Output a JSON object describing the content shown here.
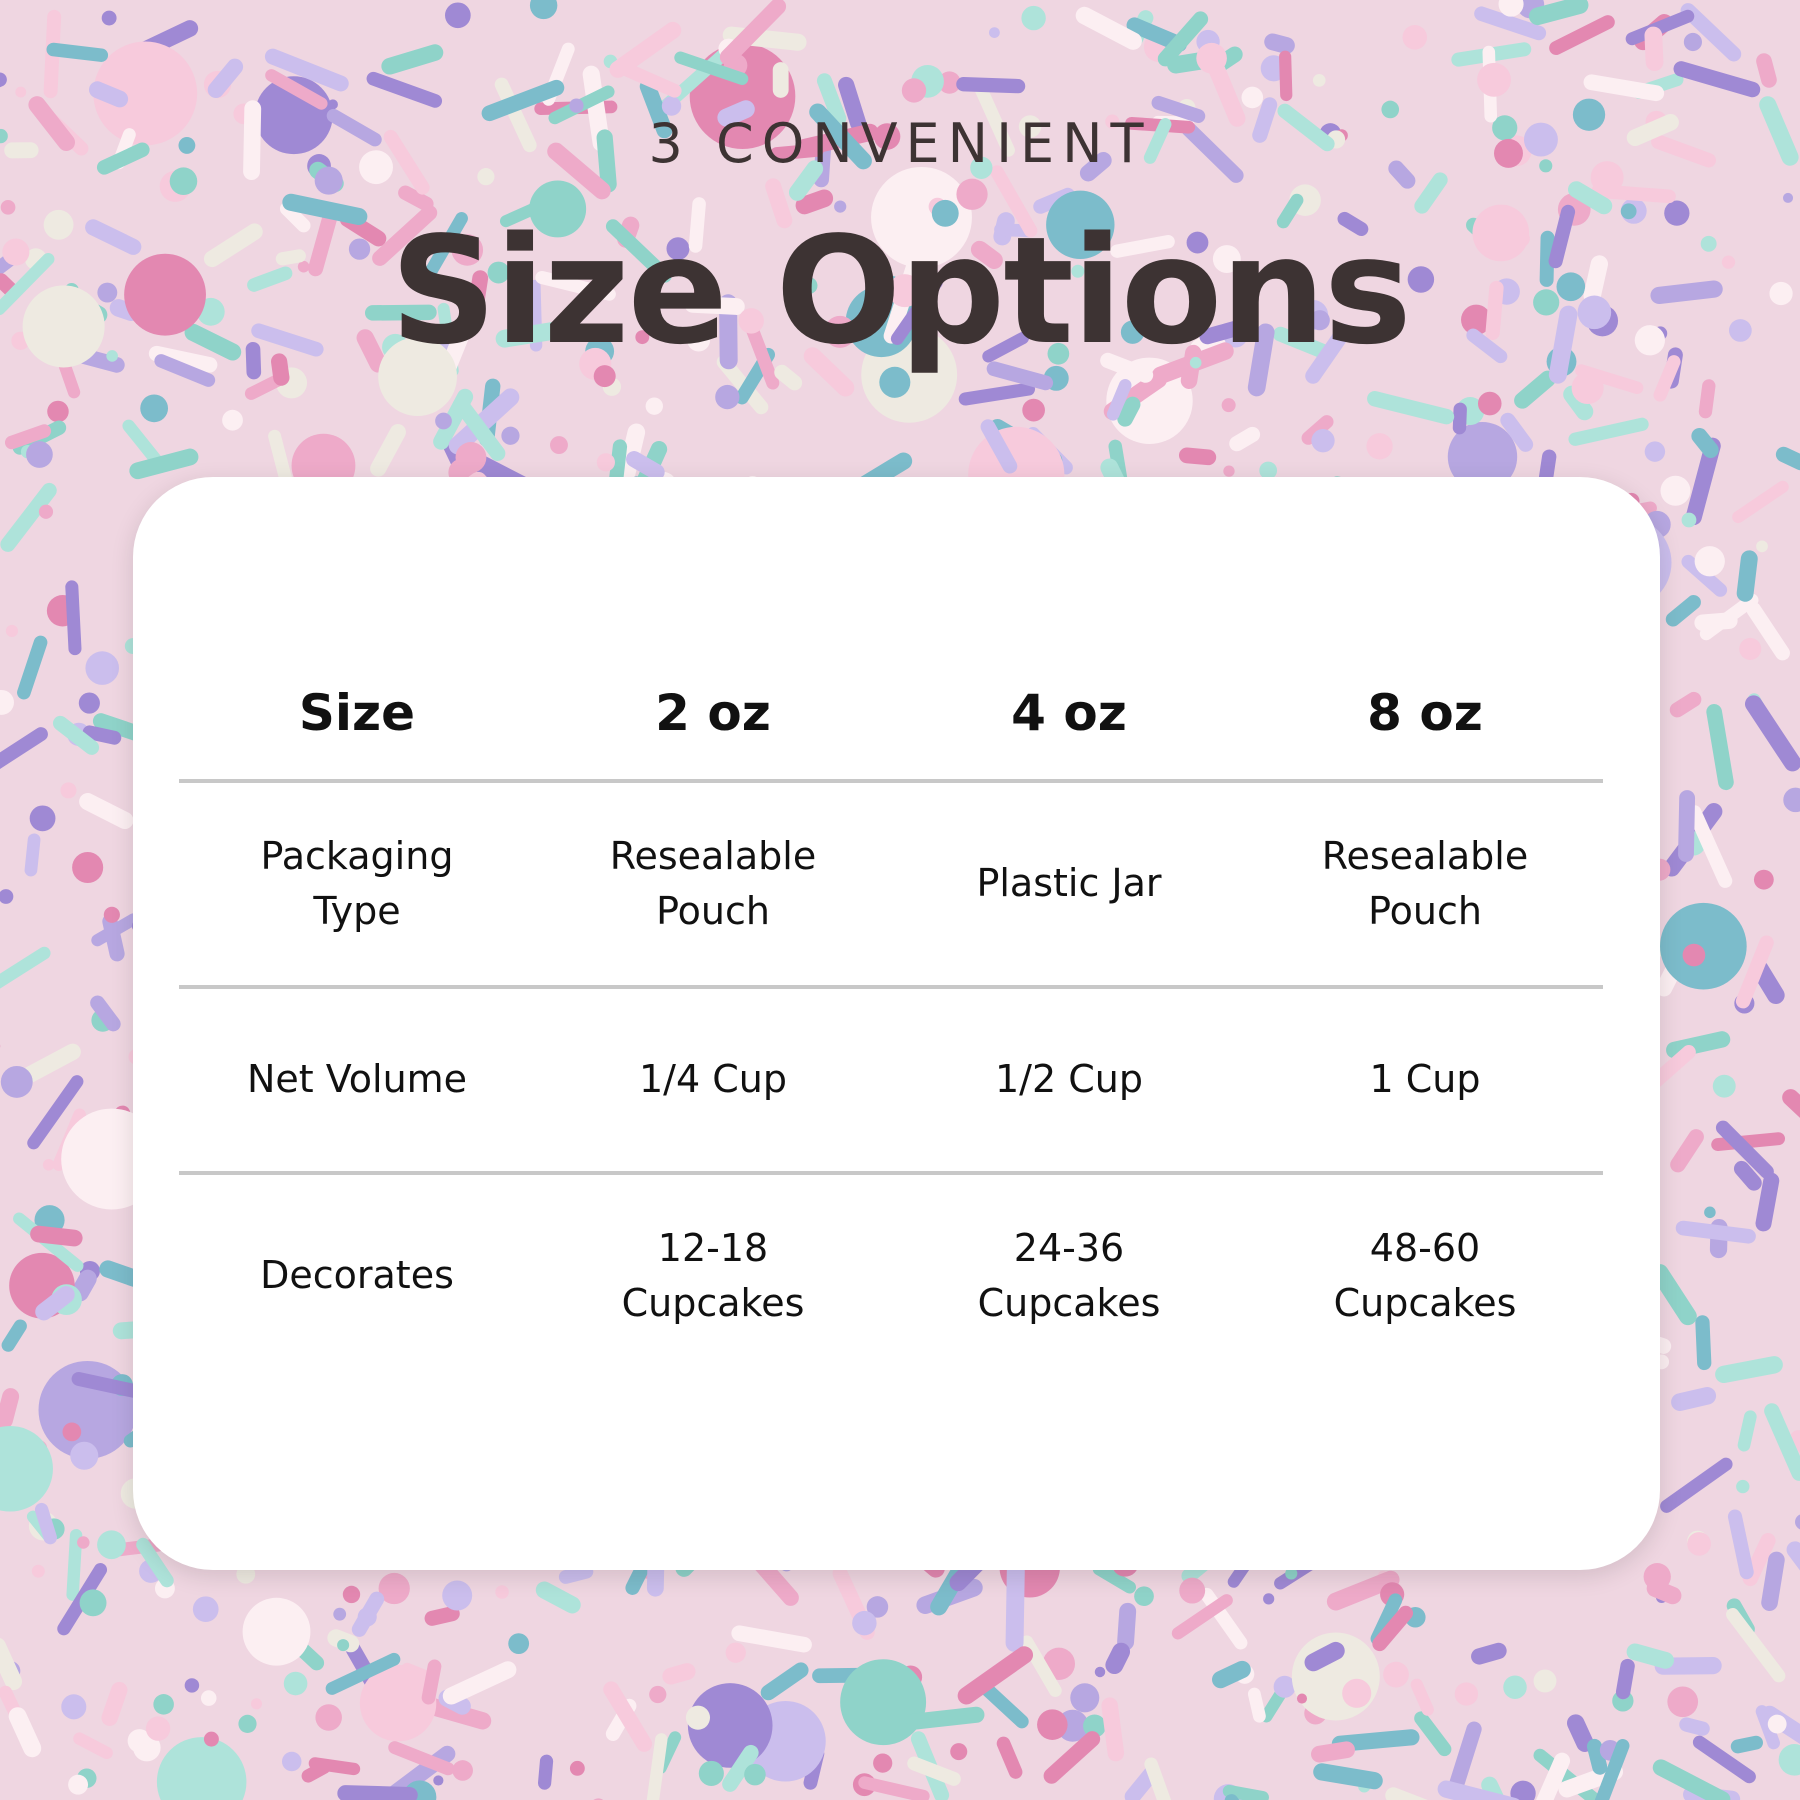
{
  "header": {
    "kicker": "3 CONVENIENT",
    "title": "Size Options"
  },
  "colors": {
    "title": "#3d3333",
    "card": "#ffffff",
    "divider": "#c8c8c8",
    "text": "#111111"
  },
  "table": {
    "columns": [
      "Size",
      "2 oz",
      "4 oz",
      "8 oz"
    ],
    "rows": [
      {
        "label": [
          "Packaging",
          "Type"
        ],
        "cells": [
          [
            "Resealable",
            "Pouch"
          ],
          [
            "Plastic Jar"
          ],
          [
            "Resealable",
            "Pouch"
          ]
        ]
      },
      {
        "label": [
          "Net Volume"
        ],
        "cells": [
          [
            "1/4 Cup"
          ],
          [
            "1/2 Cup"
          ],
          [
            "1 Cup"
          ]
        ]
      },
      {
        "label": [
          "Decorates"
        ],
        "cells": [
          [
            "12-18",
            "Cupcakes"
          ],
          [
            "24-36",
            "Cupcakes"
          ],
          [
            "48-60",
            "Cupcakes"
          ]
        ]
      }
    ]
  }
}
